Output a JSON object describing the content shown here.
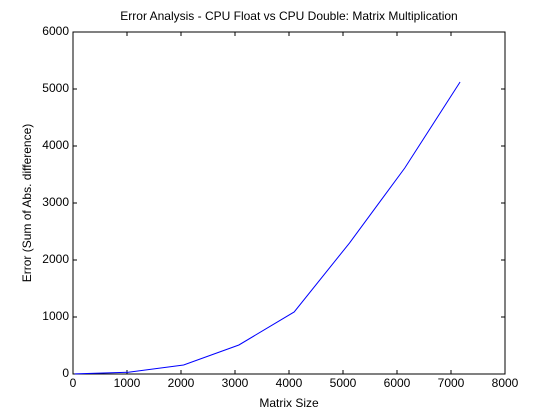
{
  "chart_data": {
    "type": "line",
    "title": "Error Analysis - CPU Float vs CPU Double: Matrix Multiplication",
    "x_label": "Matrix Size",
    "y_label": "Error (Sum of Abs. difference)",
    "x": [
      32,
      1024,
      2048,
      3072,
      4096,
      5120,
      6144,
      7168
    ],
    "series": [
      {
        "color": "#0000ff",
        "values": [
          2,
          30,
          158,
          509,
          1088,
          2298,
          3614,
          5123
        ]
      }
    ],
    "xlim": [
      0,
      8000
    ],
    "xticks": [
      0,
      1000,
      2000,
      3000,
      4000,
      5000,
      6000,
      7000,
      8000
    ],
    "ylim": [
      0,
      6000
    ],
    "yticks": [
      0,
      1000,
      2000,
      3000,
      4000,
      5000,
      6000
    ],
    "grid": false
  }
}
